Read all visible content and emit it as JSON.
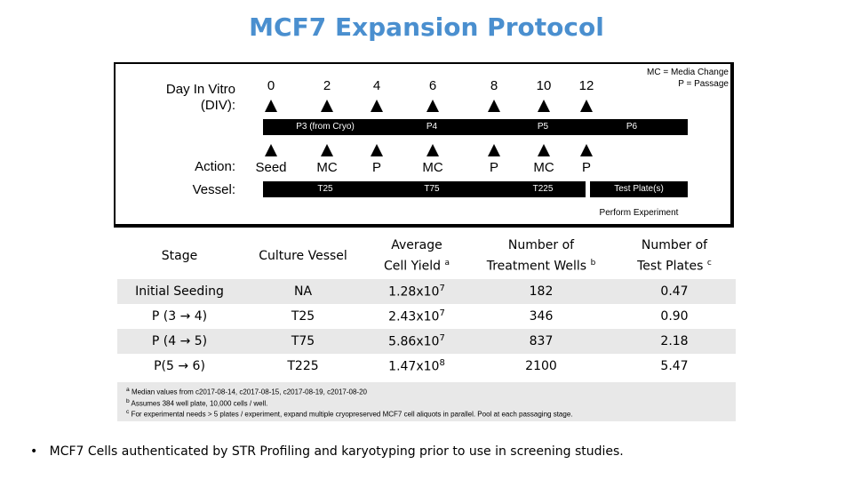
{
  "title": "MCF7 Expansion Protocol",
  "legend": {
    "line1": "MC = Media Change",
    "line2": "P = Passage"
  },
  "timeline": {
    "div_label_1": "Day In Vitro",
    "div_label_2": "(DIV):",
    "days": [
      "0",
      "2",
      "4",
      "6",
      "8",
      "10",
      "12"
    ],
    "passage_bar": [
      "P3 (from Cryo)",
      "P4",
      "P5",
      "P6"
    ],
    "action_label": "Action:",
    "actions": [
      "Seed",
      "MC",
      "P",
      "MC",
      "P",
      "MC",
      "P"
    ],
    "vessel_label": "Vessel:",
    "vessels": [
      "T25",
      "T75",
      "T225",
      "Test Plate(s)"
    ],
    "perform": "Perform Experiment"
  },
  "table": {
    "headers": [
      {
        "l1": "Stage",
        "l2": "",
        "sup": ""
      },
      {
        "l1": "Culture Vessel",
        "l2": "",
        "sup": ""
      },
      {
        "l1": "Average",
        "l2": "Cell Yield",
        "sup": "a"
      },
      {
        "l1": "Number of",
        "l2": "Treatment Wells",
        "sup": "b"
      },
      {
        "l1": "Number of",
        "l2": "Test Plates",
        "sup": "c"
      }
    ],
    "rows": [
      {
        "stage": "Initial Seeding",
        "vessel": "NA",
        "yield_base": "1.28x10",
        "yield_exp": "7",
        "wells": "182",
        "plates": "0.47"
      },
      {
        "stage": "P (3 → 4)",
        "vessel": "T25",
        "yield_base": "2.43x10",
        "yield_exp": "7",
        "wells": "346",
        "plates": "0.90"
      },
      {
        "stage": "P (4 → 5)",
        "vessel": "T75",
        "yield_base": "5.86x10",
        "yield_exp": "7",
        "wells": "837",
        "plates": "2.18"
      },
      {
        "stage": "P(5 → 6)",
        "vessel": "T225",
        "yield_base": "1.47x10",
        "yield_exp": "8",
        "wells": "2100",
        "plates": "5.47"
      }
    ]
  },
  "footnotes": {
    "a": {
      "mark": "a",
      "text": "Median values from c2017-08-14, c2017-08-15, c2017-08-19, c2017-08-20"
    },
    "b": {
      "mark": "b",
      "text": "Assumes 384 well plate, 10,000 cells / well."
    },
    "c": {
      "mark": "c",
      "text": "For experimental needs > 5 plates / experiment, expand multiple cryopreserved MCF7 cell aliquots in parallel.  Pool at each passaging stage."
    }
  },
  "bullet": {
    "mark": "•",
    "text": "MCF7 Cells authenticated by STR Profiling and karyotyping prior to use in screening studies."
  }
}
